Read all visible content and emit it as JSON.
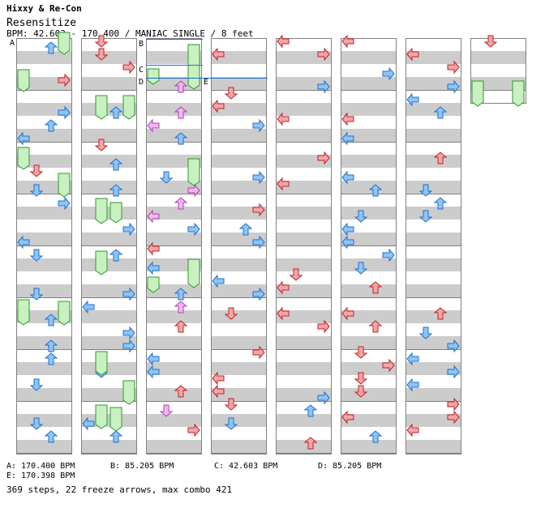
{
  "header": {
    "artist": "Hixxy & Re-Con",
    "title": "Resensitize",
    "meta": "BPM: 42.603 - 170.400 / MANIAC SINGLE / 8 feet"
  },
  "bpm_markers": [
    "A",
    "B",
    "C",
    "D",
    "E"
  ],
  "bpm_legend": [
    {
      "text": "A: 170.400 BPM"
    },
    {
      "text": "B: 85.205 BPM"
    },
    {
      "text": "C: 42.603 BPM"
    },
    {
      "text": "D: 85.205 BPM"
    },
    {
      "text": "E: 170.398 BPM"
    }
  ],
  "footer": "369 steps, 22 freeze arrows, max combo 421",
  "colors": {
    "arrow_red": "#f4a6a6",
    "arrow_red_stroke": "#c0202a",
    "arrow_blue": "#8ec5f5",
    "arrow_blue_stroke": "#1f6fd0",
    "arrow_pink": "#f0b6f0",
    "arrow_pink_stroke": "#b040b0",
    "freeze_green": "#c8f0c0",
    "freeze_green_stroke": "#2a9a2a",
    "stripe_gray": "#cccccc",
    "border": "#808080"
  }
}
